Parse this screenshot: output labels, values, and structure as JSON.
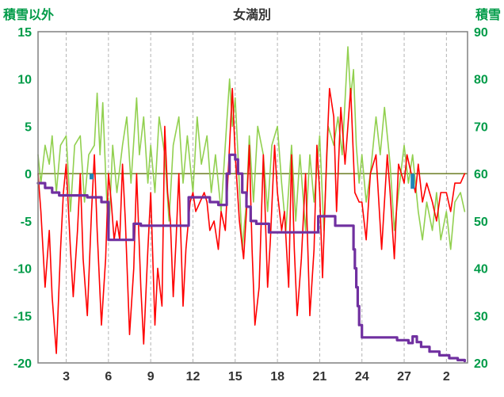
{
  "header": {
    "left_axis_title": "積雪以外",
    "title": "女満別",
    "right_axis_title": "積雪"
  },
  "colors": {
    "axis_text": "#009b48",
    "title_text": "#333333",
    "grid": "#b3b3b3",
    "border": "#808080",
    "zero_line": "#6b7d23",
    "green_series": "#92d050",
    "red_series": "#ff0000",
    "snow_series": "#7030a0",
    "precip": "#1f86b8"
  },
  "chart_data": {
    "type": "line",
    "title": "女満別",
    "left_axis": {
      "label": "積雪以外",
      "min": -20,
      "max": 15,
      "ticks": [
        15,
        10,
        5,
        0,
        -5,
        -10,
        -15,
        -20
      ]
    },
    "right_axis": {
      "label": "積雪",
      "min": 20,
      "max": 90,
      "ticks": [
        90,
        80,
        70,
        60,
        50,
        40,
        30,
        20
      ]
    },
    "x_axis": {
      "min": 1,
      "max": 31.5,
      "ticks": [
        {
          "pos": 3,
          "label": "3"
        },
        {
          "pos": 6,
          "label": "6"
        },
        {
          "pos": 9,
          "label": "9"
        },
        {
          "pos": 12,
          "label": "12"
        },
        {
          "pos": 15,
          "label": "15"
        },
        {
          "pos": 18,
          "label": "18"
        },
        {
          "pos": 21,
          "label": "21"
        },
        {
          "pos": 24,
          "label": "24"
        },
        {
          "pos": 27,
          "label": "27"
        },
        {
          "pos": 30,
          "label": "2"
        }
      ]
    },
    "series": [
      {
        "name": "green-line",
        "axis": "left",
        "step": false,
        "width": 1.6,
        "points": [
          [
            1,
            2
          ],
          [
            1.2,
            -1
          ],
          [
            1.5,
            3
          ],
          [
            1.8,
            1
          ],
          [
            2,
            4
          ],
          [
            2.3,
            -2
          ],
          [
            2.6,
            3
          ],
          [
            3,
            4
          ],
          [
            3.3,
            -4
          ],
          [
            3.6,
            3
          ],
          [
            4,
            4
          ],
          [
            4.3,
            -3
          ],
          [
            4.6,
            2
          ],
          [
            5,
            3
          ],
          [
            5.2,
            8.5
          ],
          [
            5.4,
            2
          ],
          [
            5.6,
            7.5
          ],
          [
            5.8,
            0
          ],
          [
            6,
            -7
          ],
          [
            6.3,
            3
          ],
          [
            6.6,
            -2
          ],
          [
            7,
            3
          ],
          [
            7.3,
            6
          ],
          [
            7.6,
            -1
          ],
          [
            8,
            8
          ],
          [
            8.2,
            2
          ],
          [
            8.5,
            6
          ],
          [
            8.8,
            -1
          ],
          [
            9,
            3
          ],
          [
            9.3,
            -2
          ],
          [
            9.6,
            6
          ],
          [
            10,
            2
          ],
          [
            10.3,
            -5
          ],
          [
            10.6,
            3
          ],
          [
            11,
            6
          ],
          [
            11.3,
            -1
          ],
          [
            11.6,
            4
          ],
          [
            12,
            -2
          ],
          [
            12.3,
            6
          ],
          [
            12.6,
            1
          ],
          [
            13,
            4
          ],
          [
            13.3,
            -2
          ],
          [
            13.6,
            2
          ],
          [
            14,
            -4
          ],
          [
            14.3,
            3
          ],
          [
            14.6,
            10
          ],
          [
            14.8,
            5
          ],
          [
            15,
            8
          ],
          [
            15.2,
            2
          ],
          [
            15.5,
            -8
          ],
          [
            15.8,
            -3
          ],
          [
            16,
            4
          ],
          [
            16.3,
            -3
          ],
          [
            16.6,
            5
          ],
          [
            17,
            2
          ],
          [
            17.3,
            -4
          ],
          [
            17.6,
            3
          ],
          [
            18,
            5
          ],
          [
            18.3,
            -1
          ],
          [
            18.6,
            -6
          ],
          [
            19,
            3
          ],
          [
            19.3,
            -5
          ],
          [
            19.6,
            2
          ],
          [
            20,
            -6
          ],
          [
            20.3,
            2
          ],
          [
            20.6,
            -3
          ],
          [
            21,
            4
          ],
          [
            21.3,
            -6
          ],
          [
            21.6,
            5
          ],
          [
            22,
            3
          ],
          [
            22.3,
            6
          ],
          [
            22.6,
            2
          ],
          [
            23,
            13.4
          ],
          [
            23.2,
            8
          ],
          [
            23.4,
            11
          ],
          [
            23.6,
            3
          ],
          [
            23.8,
            -1
          ],
          [
            24,
            2
          ],
          [
            24.3,
            -3
          ],
          [
            24.6,
            0
          ],
          [
            25,
            6
          ],
          [
            25.3,
            2
          ],
          [
            25.6,
            7
          ],
          [
            26,
            1
          ],
          [
            26.3,
            -6
          ],
          [
            26.6,
            -2
          ],
          [
            27,
            3
          ],
          [
            27.3,
            -1
          ],
          [
            27.6,
            2
          ],
          [
            28,
            -4
          ],
          [
            28.3,
            -7
          ],
          [
            28.6,
            -3
          ],
          [
            29,
            -6
          ],
          [
            29.3,
            -2
          ],
          [
            29.6,
            -7
          ],
          [
            30,
            -4
          ],
          [
            30.3,
            -8
          ],
          [
            30.6,
            -3
          ],
          [
            31,
            -2
          ],
          [
            31.3,
            -4
          ]
        ]
      },
      {
        "name": "red-line",
        "axis": "left",
        "step": false,
        "width": 1.6,
        "points": [
          [
            1,
            0
          ],
          [
            1.2,
            -4
          ],
          [
            1.5,
            -12
          ],
          [
            1.8,
            -6
          ],
          [
            2,
            -13
          ],
          [
            2.3,
            -19
          ],
          [
            2.6,
            -8
          ],
          [
            2.8,
            -2
          ],
          [
            3,
            1
          ],
          [
            3.3,
            -8
          ],
          [
            3.5,
            -13
          ],
          [
            3.8,
            -6
          ],
          [
            4,
            0
          ],
          [
            4.2,
            -9
          ],
          [
            4.5,
            -15
          ],
          [
            4.8,
            -4
          ],
          [
            5,
            2
          ],
          [
            5.2,
            -6
          ],
          [
            5.5,
            -16
          ],
          [
            5.8,
            -9
          ],
          [
            6,
            0
          ],
          [
            6.2,
            -3
          ],
          [
            6.4,
            -7
          ],
          [
            6.6,
            -5
          ],
          [
            6.8,
            -7
          ],
          [
            7,
            1
          ],
          [
            7.2,
            -5
          ],
          [
            7.5,
            -17
          ],
          [
            7.8,
            -10
          ],
          [
            8,
            0
          ],
          [
            8.3,
            -12
          ],
          [
            8.5,
            -18
          ],
          [
            8.8,
            -8
          ],
          [
            9,
            -2
          ],
          [
            9.3,
            -16
          ],
          [
            9.5,
            -10
          ],
          [
            9.8,
            -14
          ],
          [
            10,
            5
          ],
          [
            10.2,
            -2
          ],
          [
            10.4,
            -5
          ],
          [
            10.6,
            -13
          ],
          [
            10.8,
            -7
          ],
          [
            11,
            0
          ],
          [
            11.3,
            -14
          ],
          [
            11.5,
            -8
          ],
          [
            11.8,
            -3
          ],
          [
            12,
            -2
          ],
          [
            12.2,
            -4
          ],
          [
            12.5,
            -3
          ],
          [
            12.8,
            -2
          ],
          [
            13,
            -3
          ],
          [
            13.2,
            -6
          ],
          [
            13.5,
            -5
          ],
          [
            13.8,
            -8
          ],
          [
            14,
            -4
          ],
          [
            14.3,
            -6
          ],
          [
            14.6,
            3
          ],
          [
            14.8,
            9
          ],
          [
            15,
            2
          ],
          [
            15.3,
            -5
          ],
          [
            15.6,
            -9
          ],
          [
            15.8,
            -4
          ],
          [
            16,
            3
          ],
          [
            16.2,
            -8
          ],
          [
            16.4,
            -16
          ],
          [
            16.7,
            -12
          ],
          [
            17,
            2
          ],
          [
            17.3,
            -12
          ],
          [
            17.5,
            -7
          ],
          [
            17.8,
            3
          ],
          [
            18,
            -2
          ],
          [
            18.3,
            -6
          ],
          [
            18.5,
            -4
          ],
          [
            18.8,
            -12
          ],
          [
            19,
            2
          ],
          [
            19.2,
            -8
          ],
          [
            19.4,
            -15
          ],
          [
            19.7,
            -9
          ],
          [
            20,
            0
          ],
          [
            20.3,
            -15
          ],
          [
            20.6,
            -8
          ],
          [
            20.8,
            3
          ],
          [
            21,
            -2
          ],
          [
            21.2,
            -11
          ],
          [
            21.5,
            2
          ],
          [
            21.7,
            9
          ],
          [
            22,
            6
          ],
          [
            22.2,
            -4
          ],
          [
            22.5,
            7
          ],
          [
            22.8,
            1
          ],
          [
            23,
            5
          ],
          [
            23.2,
            9
          ],
          [
            23.5,
            -2
          ],
          [
            23.8,
            -3
          ],
          [
            24,
            -3
          ],
          [
            24.3,
            -7
          ],
          [
            24.6,
            0
          ],
          [
            25,
            2
          ],
          [
            25.4,
            -8
          ],
          [
            25.8,
            2
          ],
          [
            26,
            -2
          ],
          [
            26.3,
            -9
          ],
          [
            26.6,
            1
          ],
          [
            27,
            -1
          ],
          [
            27.2,
            2
          ],
          [
            27.5,
            0
          ],
          [
            27.8,
            -2
          ],
          [
            28,
            1
          ],
          [
            28.3,
            -3
          ],
          [
            28.6,
            -1
          ],
          [
            29,
            -3
          ],
          [
            29.3,
            -5
          ],
          [
            29.6,
            -2
          ],
          [
            30,
            -2
          ],
          [
            30.3,
            -4
          ],
          [
            30.6,
            -1
          ],
          [
            31,
            -1
          ],
          [
            31.3,
            0
          ]
        ]
      },
      {
        "name": "snow-depth-line",
        "axis": "right",
        "step": true,
        "width": 3.2,
        "points": [
          [
            1,
            58
          ],
          [
            1.5,
            57
          ],
          [
            2,
            56
          ],
          [
            2.5,
            55.4
          ],
          [
            4.5,
            55
          ],
          [
            5.5,
            54
          ],
          [
            6,
            46
          ],
          [
            7.8,
            49.4
          ],
          [
            8.3,
            49
          ],
          [
            11.7,
            55
          ],
          [
            13.2,
            54
          ],
          [
            13.8,
            53.4
          ],
          [
            14.4,
            60
          ],
          [
            14.6,
            64
          ],
          [
            15,
            63
          ],
          [
            15.2,
            60
          ],
          [
            15.5,
            56
          ],
          [
            15.8,
            53
          ],
          [
            16.1,
            50
          ],
          [
            16.5,
            49.4
          ],
          [
            17.4,
            47.6
          ],
          [
            20.9,
            51
          ],
          [
            22.1,
            49
          ],
          [
            23.3,
            49
          ],
          [
            23.4,
            44
          ],
          [
            23.5,
            40
          ],
          [
            23.6,
            36
          ],
          [
            23.7,
            32
          ],
          [
            23.8,
            28
          ],
          [
            24,
            25.4
          ],
          [
            26.5,
            24.8
          ],
          [
            27.3,
            24.2
          ],
          [
            27.6,
            25.6
          ],
          [
            27.9,
            24.4
          ],
          [
            28.2,
            23.4
          ],
          [
            28.8,
            22.4
          ],
          [
            29.5,
            21.6
          ],
          [
            30.2,
            21
          ],
          [
            30.8,
            20.6
          ],
          [
            31.3,
            20.4
          ]
        ]
      }
    ],
    "bars": [
      {
        "x": 4.8,
        "value": -0.6
      },
      {
        "x": 27.6,
        "value": -1.6
      }
    ]
  }
}
